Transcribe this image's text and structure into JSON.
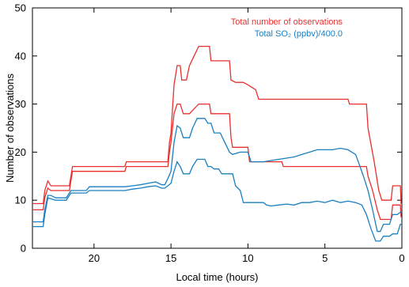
{
  "chart_data": {
    "type": "line",
    "title": "",
    "xlabel": "Local time (hours)",
    "ylabel": "Number of observations",
    "xlim": [
      24,
      0
    ],
    "ylim": [
      0,
      50
    ],
    "x_reversed": true,
    "xticks": [
      20,
      15,
      10,
      5,
      0
    ],
    "yticks": [
      0,
      10,
      20,
      30,
      40,
      50
    ],
    "xtick_labels": [
      "20",
      "15",
      "10",
      "5",
      "0"
    ],
    "ytick_labels": [
      "0",
      "10",
      "20",
      "30",
      "40",
      "50"
    ],
    "grid": false,
    "legend_position": "top-right",
    "legend": [
      {
        "text": "Total number of observations",
        "color": "#e8302e"
      },
      {
        "text": "Total SO₂ (ppbv)/400.0",
        "color": "#1a7fc1"
      }
    ],
    "series": [
      {
        "color": "#e8302e",
        "points": [
          [
            24,
            9.3
          ],
          [
            23.3,
            9.3
          ],
          [
            23.2,
            12
          ],
          [
            23,
            14
          ],
          [
            22.8,
            13
          ],
          [
            21.6,
            13
          ],
          [
            21.4,
            17
          ],
          [
            18,
            17
          ],
          [
            17.9,
            18
          ],
          [
            15.2,
            18
          ],
          [
            15.1,
            22
          ],
          [
            15,
            24
          ],
          [
            14.8,
            34
          ],
          [
            14.6,
            38
          ],
          [
            14.4,
            38
          ],
          [
            14.3,
            35
          ],
          [
            14,
            35
          ],
          [
            13.8,
            38
          ],
          [
            13.5,
            40
          ],
          [
            13.2,
            42
          ],
          [
            12.5,
            42
          ],
          [
            12.4,
            39
          ],
          [
            11.2,
            39
          ],
          [
            11.1,
            35
          ],
          [
            10.8,
            34.5
          ],
          [
            10.3,
            34.5
          ],
          [
            10,
            34
          ],
          [
            9.5,
            33
          ],
          [
            9.3,
            31
          ],
          [
            3.5,
            31
          ],
          [
            3.4,
            30
          ],
          [
            2.3,
            30
          ],
          [
            2.2,
            25
          ],
          [
            1.8,
            18
          ],
          [
            1.5,
            12
          ],
          [
            1.3,
            10
          ],
          [
            0.7,
            10
          ],
          [
            0.6,
            13
          ],
          [
            0.1,
            13
          ],
          [
            0.05,
            9.3
          ],
          [
            0,
            9.3
          ]
        ]
      },
      {
        "color": "#e8302e",
        "points": [
          [
            24,
            8
          ],
          [
            23.3,
            8
          ],
          [
            23.2,
            10.5
          ],
          [
            23,
            12.5
          ],
          [
            22.8,
            12
          ],
          [
            21.6,
            12
          ],
          [
            21.4,
            16
          ],
          [
            18,
            16
          ],
          [
            17.9,
            17
          ],
          [
            15.2,
            17
          ],
          [
            15.1,
            20
          ],
          [
            15,
            22
          ],
          [
            14.8,
            28
          ],
          [
            14.6,
            30
          ],
          [
            14.4,
            30
          ],
          [
            14.2,
            28
          ],
          [
            13.8,
            28
          ],
          [
            13.5,
            29
          ],
          [
            13.2,
            30
          ],
          [
            12.5,
            30
          ],
          [
            12.4,
            28
          ],
          [
            11.2,
            28
          ],
          [
            11.1,
            23
          ],
          [
            11,
            21
          ],
          [
            10,
            21
          ],
          [
            9.9,
            18
          ],
          [
            7.8,
            18
          ],
          [
            7.7,
            17
          ],
          [
            2.3,
            17
          ],
          [
            2.2,
            15
          ],
          [
            1.9,
            12
          ],
          [
            1.6,
            8
          ],
          [
            1.4,
            6
          ],
          [
            0.7,
            6
          ],
          [
            0.6,
            9
          ],
          [
            0.1,
            9
          ],
          [
            0.05,
            6.5
          ],
          [
            0,
            6.5
          ]
        ]
      },
      {
        "color": "#1a7fc1",
        "points": [
          [
            24,
            5.5
          ],
          [
            23.3,
            5.5
          ],
          [
            23.2,
            8
          ],
          [
            23,
            11
          ],
          [
            22.8,
            11
          ],
          [
            22.5,
            10.5
          ],
          [
            21.8,
            10.5
          ],
          [
            21.5,
            12
          ],
          [
            20.5,
            12
          ],
          [
            20.3,
            12.8
          ],
          [
            18,
            12.8
          ],
          [
            17.5,
            13
          ],
          [
            17,
            13.2
          ],
          [
            16.5,
            13.5
          ],
          [
            16,
            13.8
          ],
          [
            15.6,
            13.2
          ],
          [
            15.4,
            13.2
          ],
          [
            15.2,
            14.5
          ],
          [
            15,
            16
          ],
          [
            14.8,
            22
          ],
          [
            14.6,
            25.5
          ],
          [
            14.4,
            25
          ],
          [
            14.2,
            23
          ],
          [
            13.8,
            23
          ],
          [
            13.6,
            25
          ],
          [
            13.3,
            27
          ],
          [
            12.8,
            27
          ],
          [
            12.6,
            26
          ],
          [
            12.4,
            26
          ],
          [
            12.2,
            24
          ],
          [
            11.8,
            24
          ],
          [
            11.5,
            22
          ],
          [
            11.2,
            20
          ],
          [
            11,
            19.5
          ],
          [
            10.5,
            20
          ],
          [
            10,
            20
          ],
          [
            9.8,
            18
          ],
          [
            9,
            18
          ],
          [
            8,
            18.5
          ],
          [
            7,
            19
          ],
          [
            6.5,
            19.5
          ],
          [
            6,
            20
          ],
          [
            5.5,
            20.5
          ],
          [
            4.5,
            20.5
          ],
          [
            4,
            20.8
          ],
          [
            3.5,
            20.5
          ],
          [
            3,
            19.5
          ],
          [
            2.5,
            15
          ],
          [
            2.2,
            12
          ],
          [
            1.9,
            8
          ],
          [
            1.6,
            3.5
          ],
          [
            1.4,
            3.5
          ],
          [
            1.2,
            5
          ],
          [
            0.8,
            5
          ],
          [
            0.6,
            7
          ],
          [
            0.3,
            7
          ],
          [
            0.1,
            7.5
          ],
          [
            0,
            7.5
          ]
        ]
      },
      {
        "color": "#1a7fc1",
        "points": [
          [
            24,
            4.5
          ],
          [
            23.3,
            4.5
          ],
          [
            23.2,
            7
          ],
          [
            23,
            10.5
          ],
          [
            22.8,
            10.3
          ],
          [
            22.5,
            10
          ],
          [
            21.8,
            10
          ],
          [
            21.5,
            11.5
          ],
          [
            20.5,
            11.5
          ],
          [
            20.3,
            12
          ],
          [
            18,
            12
          ],
          [
            17.5,
            12.3
          ],
          [
            17,
            12.5
          ],
          [
            16.5,
            12.8
          ],
          [
            16,
            13
          ],
          [
            15.6,
            12.5
          ],
          [
            15.4,
            12.5
          ],
          [
            15.2,
            13
          ],
          [
            15,
            13.5
          ],
          [
            14.8,
            16
          ],
          [
            14.6,
            18
          ],
          [
            14.4,
            17
          ],
          [
            14.2,
            15.5
          ],
          [
            13.8,
            15.5
          ],
          [
            13.6,
            17
          ],
          [
            13.3,
            18.5
          ],
          [
            12.8,
            18.5
          ],
          [
            12.6,
            17
          ],
          [
            12.4,
            17
          ],
          [
            12.2,
            16.5
          ],
          [
            11.9,
            16.5
          ],
          [
            11.7,
            15.5
          ],
          [
            11,
            15.5
          ],
          [
            10.8,
            13
          ],
          [
            10.5,
            12
          ],
          [
            10.3,
            9.5
          ],
          [
            9,
            9.5
          ],
          [
            8.8,
            9
          ],
          [
            8.5,
            8.8
          ],
          [
            8,
            9
          ],
          [
            7.5,
            9.2
          ],
          [
            7,
            9
          ],
          [
            6.5,
            9.5
          ],
          [
            6,
            9.5
          ],
          [
            5.5,
            9.8
          ],
          [
            5,
            9.5
          ],
          [
            4.5,
            10
          ],
          [
            4,
            9.5
          ],
          [
            3.5,
            9.8
          ],
          [
            3,
            9.5
          ],
          [
            2.6,
            9
          ],
          [
            2.3,
            7
          ],
          [
            2,
            4
          ],
          [
            1.7,
            1.5
          ],
          [
            1.4,
            1.5
          ],
          [
            1.2,
            2.5
          ],
          [
            0.8,
            2.5
          ],
          [
            0.6,
            3
          ],
          [
            0.3,
            3
          ],
          [
            0.1,
            5
          ],
          [
            0,
            5
          ]
        ]
      }
    ]
  }
}
